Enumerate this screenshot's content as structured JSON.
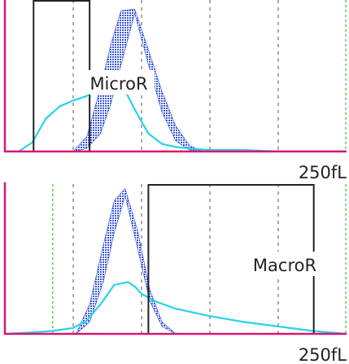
{
  "chart_data": [
    {
      "type": "area",
      "panel": "top",
      "axis_color": "#d6186f",
      "xlabel": "250fL",
      "xlim": [
        0,
        250
      ],
      "grid": "dashed vertical",
      "gridline_x": [
        21,
        50,
        100,
        150,
        200
      ],
      "gate_x": [
        250
      ],
      "gate": {
        "label": "MicroR",
        "x_range": [
          21,
          62
        ]
      },
      "series": [
        {
          "kind": "reference band",
          "color": "#3350d6",
          "x": [
            50,
            60,
            70,
            78,
            85,
            95,
            105,
            115,
            125,
            135,
            145
          ],
          "lower": [
            0.0,
            0.02,
            0.12,
            0.33,
            0.58,
            0.92,
            0.58,
            0.26,
            0.07,
            0.01,
            0.0
          ],
          "upper": [
            0.0,
            0.1,
            0.43,
            0.73,
            0.94,
            0.95,
            0.68,
            0.4,
            0.17,
            0.04,
            0.0
          ]
        },
        {
          "kind": "sample curve",
          "color": "#27d3ea",
          "x": [
            0,
            10,
            20,
            30,
            40,
            50,
            60,
            70,
            78,
            85,
            95,
            105,
            115,
            125,
            135,
            150,
            175,
            200,
            225,
            250
          ],
          "y": [
            0.0,
            0.0,
            0.06,
            0.22,
            0.3,
            0.34,
            0.37,
            0.48,
            0.53,
            0.46,
            0.28,
            0.12,
            0.05,
            0.03,
            0.02,
            0.01,
            0.01,
            0.0,
            0.0,
            0.0
          ]
        }
      ]
    },
    {
      "type": "area",
      "panel": "bottom",
      "axis_color": "#d6186f",
      "xlabel": "250fL",
      "xlim": [
        0,
        250
      ],
      "grid": "dashed vertical",
      "gridline_x": [
        50,
        100,
        150,
        200
      ],
      "gate_x": [
        35,
        250
      ],
      "gate": {
        "label": "MacroR",
        "x_range": [
          105,
          226
        ]
      },
      "series": [
        {
          "kind": "reference band",
          "color": "#3350d6",
          "x": [
            52,
            62,
            72,
            80,
            88,
            97,
            106,
            115,
            125
          ],
          "lower": [
            0.0,
            0.08,
            0.35,
            0.68,
            0.93,
            0.58,
            0.22,
            0.05,
            0.0
          ],
          "upper": [
            0.0,
            0.2,
            0.6,
            0.9,
            0.98,
            0.7,
            0.3,
            0.08,
            0.0
          ]
        },
        {
          "kind": "sample curve",
          "color": "#27d3ea",
          "x": [
            0,
            20,
            35,
            50,
            60,
            70,
            80,
            90,
            95,
            100,
            110,
            125,
            150,
            175,
            200,
            225,
            250
          ],
          "y": [
            0.0,
            0.01,
            0.02,
            0.04,
            0.09,
            0.2,
            0.33,
            0.35,
            0.32,
            0.27,
            0.22,
            0.17,
            0.12,
            0.08,
            0.05,
            0.02,
            0.0
          ]
        }
      ]
    }
  ]
}
